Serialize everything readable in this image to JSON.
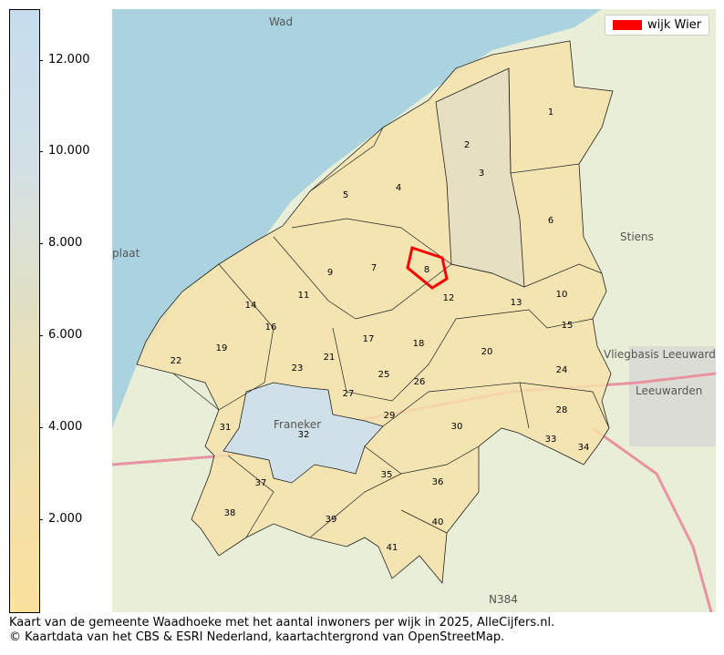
{
  "colorbar": {
    "ticks": [
      "2.000",
      "4.000",
      "6.000",
      "8.000",
      "10.000",
      "12.000"
    ],
    "tick_values": [
      2000,
      4000,
      6000,
      8000,
      10000,
      12000
    ],
    "range": [
      0,
      13100
    ],
    "color_low": "#fbe19c",
    "color_high": "#c6ddee"
  },
  "legend": {
    "label": "wijk Wier",
    "color": "#ff0000"
  },
  "map": {
    "districts": [
      "1",
      "2",
      "3",
      "4",
      "5",
      "6",
      "7",
      "8",
      "9",
      "10",
      "11",
      "12",
      "13",
      "14",
      "15",
      "16",
      "17",
      "18",
      "19",
      "20",
      "21",
      "22",
      "23",
      "24",
      "25",
      "26",
      "27",
      "28",
      "29",
      "30",
      "31",
      "32",
      "33",
      "34",
      "35",
      "36",
      "37",
      "38",
      "39",
      "40",
      "41"
    ],
    "highlighted": "8",
    "base_labels": [
      "Wad",
      "Stiens",
      "Leeuwarden",
      "Franeker",
      "N384",
      "plaat",
      "Vliegbasis Leeuwarden"
    ]
  },
  "caption": {
    "line1": "Kaart van de gemeente Waadhoeke met het aantal inwoners per wijk in 2025, AlleCijfers.nl.",
    "line2": "© Kaartdata van het CBS & ESRI Nederland, kaartachtergrond van OpenStreetMap."
  }
}
